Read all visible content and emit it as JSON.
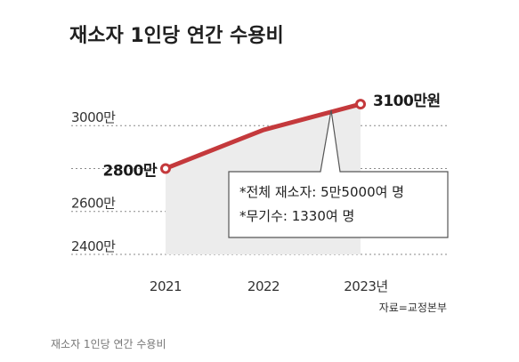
{
  "chart_data": {
    "type": "line",
    "title": "재소자 1인당 연간 수용비",
    "x": [
      "2021",
      "2022",
      "2023년"
    ],
    "series": [
      {
        "values": [
          2800,
          2980,
          3100
        ]
      }
    ],
    "data_labels": [
      "2800만",
      "3100만원"
    ],
    "y_ticks": [
      {
        "value": 3000,
        "label": "3000만"
      },
      {
        "value": 2600,
        "label": "2600만"
      },
      {
        "value": 2400,
        "label": "2400만"
      }
    ],
    "ylim": [
      2400,
      3150
    ],
    "grid": "horizontal-dashed",
    "annotation": [
      "*전체 재소자: 5만5000여 명",
      "*무기수: 1330여 명"
    ],
    "source": "자료=교정본부",
    "colors": {
      "line": "#c4393c",
      "area": "#ececec",
      "grid": "#8a8a8a"
    }
  },
  "caption": "재소자 1인당 연간 수용비"
}
